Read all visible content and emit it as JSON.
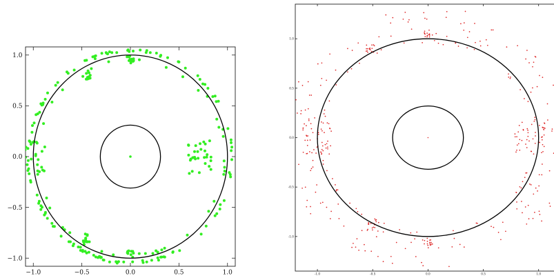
{
  "chart_data": [
    {
      "type": "scatter",
      "title": "",
      "xlabel": "",
      "ylabel": "",
      "xlim": [
        -1.08,
        1.08
      ],
      "ylim": [
        -1.08,
        1.08
      ],
      "xticks": [
        -1.0,
        -0.5,
        0.0,
        0.5,
        1.0
      ],
      "yticks": [
        -1.0,
        -0.5,
        0.0,
        0.5,
        1.0
      ],
      "xtick_labels": [
        "−1.0",
        "−0.5",
        "0.0",
        "0.5",
        "1.0"
      ],
      "ytick_labels": [
        "−1.0",
        "−0.5",
        "0.0",
        "0.5",
        "1.0"
      ],
      "grid": false,
      "point_color": "#33ee22",
      "circles": [
        {
          "cx": 0.0,
          "cy": 0.0,
          "r": 1.0
        },
        {
          "cx": 0.0,
          "cy": 0.0,
          "r": 0.31
        }
      ],
      "center_point": [
        0.0,
        0.0
      ],
      "clusters": [
        {
          "x": -1.0,
          "y": 0.0
        },
        {
          "x": 0.7,
          "y": 0.0
        },
        {
          "x": -0.45,
          "y": 0.8
        },
        {
          "x": -0.45,
          "y": -0.8
        },
        {
          "x": 0.0,
          "y": 0.96
        },
        {
          "x": 0.0,
          "y": -0.96
        }
      ]
    },
    {
      "type": "scatter",
      "title": "",
      "xlabel": "",
      "ylabel": "",
      "xlim": [
        -1.2,
        1.32
      ],
      "ylim": [
        -1.35,
        1.35
      ],
      "xticks": [
        -1.0,
        -0.5,
        0.0,
        0.5,
        1.0
      ],
      "yticks": [
        -1.0,
        -0.5,
        0.0,
        0.5,
        1.0
      ],
      "xtick_labels": [
        "-1.0",
        "-0.5",
        "0.0",
        "0.5",
        "1.0"
      ],
      "ytick_labels": [
        "-1.0",
        "-0.5",
        "0.0",
        "0.5",
        "1.0"
      ],
      "grid": false,
      "point_color": "#dd2222",
      "circles": [
        {
          "cx": 0.0,
          "cy": 0.0,
          "r": 1.0
        },
        {
          "cx": 0.0,
          "cy": 0.0,
          "r": 0.32
        }
      ],
      "center_point": [
        0.0,
        0.0
      ],
      "clusters": [
        {
          "x": 0.92,
          "y": 0.0
        },
        {
          "x": -1.0,
          "y": 0.0
        },
        {
          "x": -0.52,
          "y": 0.9
        },
        {
          "x": -0.52,
          "y": -0.9
        },
        {
          "x": 0.0,
          "y": 1.05
        },
        {
          "x": 0.0,
          "y": -1.05
        }
      ]
    }
  ]
}
